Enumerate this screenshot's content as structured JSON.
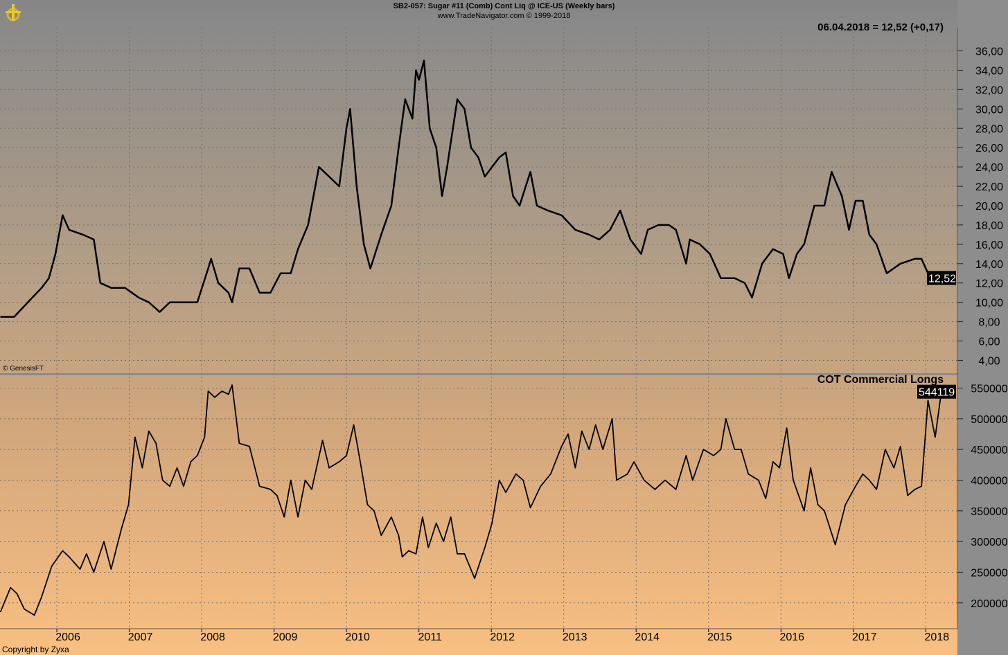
{
  "header": {
    "title": "SB2-057:  Sugar #11 (Comb) Cont Liq @ ICE-US  (Weekly bars)",
    "website": "www.TradeNavigator.com © 1999-2018"
  },
  "footer": {
    "copyright": "Copyright by Zyxa",
    "source": "© GenesisFT"
  },
  "colors": {
    "line": "#000000",
    "axis_bg": "#8d8d8d",
    "grid": "#777777",
    "value_box": "#000000"
  },
  "chart_data": [
    {
      "type": "line",
      "title": "Sugar #11 weekly price",
      "last_label": "06.04.2018 = 12,52 (+0,17)",
      "last_value": "12,52",
      "ylim": [
        2.6,
        38.4
      ],
      "yticks": [
        "4,00",
        "6,00",
        "8,00",
        "10,00",
        "12,00",
        "14,00",
        "16,00",
        "18,00",
        "20,00",
        "22,00",
        "24,00",
        "26,00",
        "28,00",
        "30,00",
        "32,00",
        "34,00",
        "36,00"
      ],
      "points": [
        [
          2005.22,
          8.5
        ],
        [
          2005.41,
          8.5
        ],
        [
          2005.6,
          10
        ],
        [
          2005.79,
          11.5
        ],
        [
          2005.89,
          12.5
        ],
        [
          2005.98,
          15
        ],
        [
          2006.08,
          19
        ],
        [
          2006.17,
          17.5
        ],
        [
          2006.36,
          17
        ],
        [
          2006.51,
          16.5
        ],
        [
          2006.6,
          12
        ],
        [
          2006.75,
          11.5
        ],
        [
          2006.94,
          11.5
        ],
        [
          2007.13,
          10.5
        ],
        [
          2007.27,
          10
        ],
        [
          2007.42,
          9
        ],
        [
          2007.56,
          10
        ],
        [
          2007.75,
          10
        ],
        [
          2007.94,
          10
        ],
        [
          2008.09,
          13.5
        ],
        [
          2008.13,
          14.5
        ],
        [
          2008.23,
          12
        ],
        [
          2008.37,
          11
        ],
        [
          2008.42,
          10
        ],
        [
          2008.52,
          13.5
        ],
        [
          2008.66,
          13.5
        ],
        [
          2008.8,
          11
        ],
        [
          2008.95,
          11
        ],
        [
          2009.09,
          13
        ],
        [
          2009.23,
          13
        ],
        [
          2009.33,
          15.5
        ],
        [
          2009.47,
          18
        ],
        [
          2009.62,
          24
        ],
        [
          2009.76,
          23
        ],
        [
          2009.9,
          22
        ],
        [
          2010.0,
          28
        ],
        [
          2010.05,
          30
        ],
        [
          2010.14,
          22
        ],
        [
          2010.24,
          16
        ],
        [
          2010.33,
          13.5
        ],
        [
          2010.48,
          17
        ],
        [
          2010.62,
          20
        ],
        [
          2010.72,
          26
        ],
        [
          2010.81,
          31
        ],
        [
          2010.91,
          29
        ],
        [
          2010.96,
          34
        ],
        [
          2011.0,
          33
        ],
        [
          2011.07,
          35
        ],
        [
          2011.15,
          28
        ],
        [
          2011.24,
          26
        ],
        [
          2011.32,
          21
        ],
        [
          2011.39,
          24
        ],
        [
          2011.53,
          31
        ],
        [
          2011.63,
          30
        ],
        [
          2011.72,
          26
        ],
        [
          2011.82,
          25
        ],
        [
          2011.91,
          23
        ],
        [
          2012.11,
          25
        ],
        [
          2012.2,
          25.5
        ],
        [
          2012.3,
          21
        ],
        [
          2012.39,
          20
        ],
        [
          2012.54,
          23.5
        ],
        [
          2012.63,
          20
        ],
        [
          2012.78,
          19.5
        ],
        [
          2012.97,
          19
        ],
        [
          2013.16,
          17.5
        ],
        [
          2013.35,
          17
        ],
        [
          2013.49,
          16.5
        ],
        [
          2013.64,
          17.5
        ],
        [
          2013.78,
          19.5
        ],
        [
          2013.92,
          16.5
        ],
        [
          2014.07,
          15
        ],
        [
          2014.16,
          17.5
        ],
        [
          2014.31,
          18
        ],
        [
          2014.45,
          18
        ],
        [
          2014.55,
          17.5
        ],
        [
          2014.69,
          14
        ],
        [
          2014.74,
          16.5
        ],
        [
          2014.88,
          16
        ],
        [
          2015.02,
          15
        ],
        [
          2015.17,
          12.5
        ],
        [
          2015.36,
          12.5
        ],
        [
          2015.5,
          12
        ],
        [
          2015.6,
          10.5
        ],
        [
          2015.74,
          14
        ],
        [
          2015.89,
          15.5
        ],
        [
          2016.03,
          15
        ],
        [
          2016.11,
          12.5
        ],
        [
          2016.22,
          15
        ],
        [
          2016.32,
          16
        ],
        [
          2016.46,
          20
        ],
        [
          2016.6,
          20
        ],
        [
          2016.7,
          23.5
        ],
        [
          2016.84,
          21
        ],
        [
          2016.94,
          17.5
        ],
        [
          2017.03,
          20.5
        ],
        [
          2017.13,
          20.5
        ],
        [
          2017.22,
          17
        ],
        [
          2017.32,
          16
        ],
        [
          2017.46,
          13
        ],
        [
          2017.65,
          14
        ],
        [
          2017.85,
          14.5
        ],
        [
          2017.94,
          14.5
        ],
        [
          2018.03,
          13
        ],
        [
          2018.13,
          13
        ],
        [
          2018.25,
          12.52
        ]
      ]
    },
    {
      "type": "line",
      "title": "COT Commercial Longs",
      "last_value": "544119",
      "ylim": [
        158000,
        572000
      ],
      "yticks": [
        "200000",
        "250000",
        "300000",
        "350000",
        "400000",
        "450000",
        "500000",
        "550000"
      ],
      "points": [
        [
          2005.22,
          185000
        ],
        [
          2005.36,
          225000
        ],
        [
          2005.45,
          215000
        ],
        [
          2005.55,
          190000
        ],
        [
          2005.69,
          180000
        ],
        [
          2005.79,
          210000
        ],
        [
          2005.93,
          260000
        ],
        [
          2006.08,
          285000
        ],
        [
          2006.17,
          275000
        ],
        [
          2006.32,
          255000
        ],
        [
          2006.41,
          280000
        ],
        [
          2006.51,
          250000
        ],
        [
          2006.65,
          300000
        ],
        [
          2006.75,
          255000
        ],
        [
          2006.89,
          320000
        ],
        [
          2006.99,
          360000
        ],
        [
          2007.08,
          470000
        ],
        [
          2007.18,
          420000
        ],
        [
          2007.27,
          480000
        ],
        [
          2007.37,
          460000
        ],
        [
          2007.46,
          400000
        ],
        [
          2007.56,
          390000
        ],
        [
          2007.66,
          420000
        ],
        [
          2007.75,
          390000
        ],
        [
          2007.85,
          430000
        ],
        [
          2007.94,
          440000
        ],
        [
          2008.04,
          470000
        ],
        [
          2008.09,
          545000
        ],
        [
          2008.18,
          535000
        ],
        [
          2008.28,
          545000
        ],
        [
          2008.37,
          540000
        ],
        [
          2008.42,
          555000
        ],
        [
          2008.52,
          460000
        ],
        [
          2008.66,
          455000
        ],
        [
          2008.8,
          390000
        ],
        [
          2008.95,
          385000
        ],
        [
          2009.04,
          375000
        ],
        [
          2009.14,
          340000
        ],
        [
          2009.23,
          400000
        ],
        [
          2009.33,
          340000
        ],
        [
          2009.43,
          400000
        ],
        [
          2009.52,
          385000
        ],
        [
          2009.67,
          465000
        ],
        [
          2009.76,
          420000
        ],
        [
          2009.9,
          430000
        ],
        [
          2010.0,
          440000
        ],
        [
          2010.1,
          490000
        ],
        [
          2010.19,
          430000
        ],
        [
          2010.29,
          360000
        ],
        [
          2010.38,
          350000
        ],
        [
          2010.48,
          310000
        ],
        [
          2010.62,
          340000
        ],
        [
          2010.72,
          310000
        ],
        [
          2010.77,
          275000
        ],
        [
          2010.86,
          285000
        ],
        [
          2010.96,
          280000
        ],
        [
          2011.05,
          340000
        ],
        [
          2011.13,
          290000
        ],
        [
          2011.24,
          330000
        ],
        [
          2011.34,
          300000
        ],
        [
          2011.44,
          340000
        ],
        [
          2011.53,
          280000
        ],
        [
          2011.63,
          280000
        ],
        [
          2011.77,
          240000
        ],
        [
          2011.91,
          290000
        ],
        [
          2012.01,
          330000
        ],
        [
          2012.11,
          400000
        ],
        [
          2012.2,
          380000
        ],
        [
          2012.34,
          410000
        ],
        [
          2012.44,
          400000
        ],
        [
          2012.54,
          355000
        ],
        [
          2012.68,
          390000
        ],
        [
          2012.82,
          410000
        ],
        [
          2012.97,
          455000
        ],
        [
          2013.06,
          475000
        ],
        [
          2013.16,
          420000
        ],
        [
          2013.25,
          480000
        ],
        [
          2013.35,
          450000
        ],
        [
          2013.44,
          490000
        ],
        [
          2013.54,
          450000
        ],
        [
          2013.67,
          500000
        ],
        [
          2013.73,
          400000
        ],
        [
          2013.88,
          410000
        ],
        [
          2013.97,
          430000
        ],
        [
          2014.11,
          400000
        ],
        [
          2014.26,
          385000
        ],
        [
          2014.4,
          400000
        ],
        [
          2014.55,
          385000
        ],
        [
          2014.69,
          440000
        ],
        [
          2014.78,
          400000
        ],
        [
          2014.93,
          450000
        ],
        [
          2015.07,
          440000
        ],
        [
          2015.17,
          450000
        ],
        [
          2015.24,
          500000
        ],
        [
          2015.36,
          450000
        ],
        [
          2015.45,
          450000
        ],
        [
          2015.55,
          410000
        ],
        [
          2015.69,
          400000
        ],
        [
          2015.79,
          370000
        ],
        [
          2015.89,
          430000
        ],
        [
          2015.98,
          420000
        ],
        [
          2016.08,
          485000
        ],
        [
          2016.17,
          400000
        ],
        [
          2016.32,
          350000
        ],
        [
          2016.41,
          420000
        ],
        [
          2016.51,
          360000
        ],
        [
          2016.6,
          350000
        ],
        [
          2016.75,
          295000
        ],
        [
          2016.89,
          360000
        ],
        [
          2017.03,
          390000
        ],
        [
          2017.13,
          410000
        ],
        [
          2017.22,
          400000
        ],
        [
          2017.32,
          385000
        ],
        [
          2017.44,
          450000
        ],
        [
          2017.56,
          420000
        ],
        [
          2017.65,
          455000
        ],
        [
          2017.75,
          375000
        ],
        [
          2017.85,
          385000
        ],
        [
          2017.94,
          390000
        ],
        [
          2018.03,
          530000
        ],
        [
          2018.13,
          470000
        ],
        [
          2018.21,
          540000
        ],
        [
          2018.25,
          544119
        ]
      ]
    }
  ],
  "x_axis": {
    "ticks": [
      "2006",
      "2007",
      "2008",
      "2009",
      "2010",
      "2011",
      "2012",
      "2013",
      "2014",
      "2015",
      "2016",
      "2017",
      "2018"
    ],
    "xlim": [
      2005.215,
      2018.437
    ]
  }
}
